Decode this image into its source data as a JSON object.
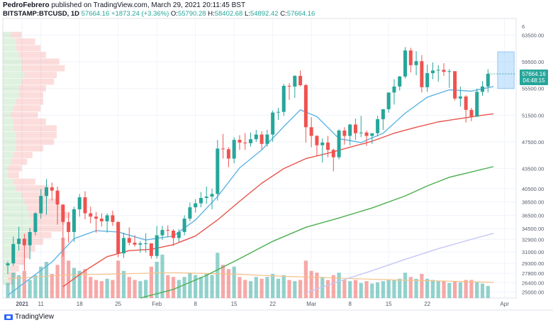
{
  "header": {
    "author": "PedroFebrero",
    "published_text": "published on TradingView.com, March 29, 2021 20:11:45 BST",
    "symbol": "BITSTAMP:BTCUSD, 1D",
    "price": "57664.16",
    "change": "+1873.24 (+3.36%)",
    "o_label": "O:",
    "o_value": "55790.28",
    "h_label": "H:",
    "h_value": "58402.68",
    "l_label": "L:",
    "l_value": "54892.42",
    "c_label": "C:",
    "c_value": "57664.16"
  },
  "price_badge": {
    "price": "57664.16",
    "countdown": "04:48:15"
  },
  "footer": {
    "logo_text": "TradingView"
  },
  "chart_data": {
    "type": "candlestick",
    "y_ticks": [
      "63500.00",
      "59500.00",
      "55500.00",
      "51500.00",
      "47500.00",
      "43500.00",
      "40500.00",
      "38500.00",
      "36500.00",
      "34500.00",
      "32900.00",
      "31000.00",
      "29300.00",
      "27800.00",
      "26400.00",
      "25000.00"
    ],
    "y_tick_top": "6",
    "x_ticks": [
      "2021",
      "11",
      "18",
      "25",
      "Feb",
      "8",
      "15",
      "22",
      "Mar",
      "8",
      "15",
      "22",
      "Apr"
    ],
    "y_range": [
      24100,
      66000
    ],
    "colors": {
      "up": "#26a69a",
      "down": "#ef5350",
      "ma_fast": "#5fb4e3",
      "ma_mid": "#e8534a",
      "ma_slow": "#4caf50",
      "ma_long": "#c5c6f5",
      "vol_ma": "#f5c28a"
    },
    "candles": [
      [
        29000,
        29600,
        27700,
        29300
      ],
      [
        29300,
        33300,
        28900,
        32200
      ],
      [
        32200,
        34800,
        31200,
        33000
      ],
      [
        33000,
        33700,
        28200,
        32000
      ],
      [
        32000,
        34600,
        29900,
        34000
      ],
      [
        34000,
        37000,
        33500,
        36800
      ],
      [
        36800,
        40400,
        36000,
        39400
      ],
      [
        39400,
        41900,
        36600,
        40700
      ],
      [
        40700,
        41400,
        38700,
        40200
      ],
      [
        40200,
        40800,
        35100,
        38100
      ],
      [
        38100,
        38200,
        30300,
        35500
      ],
      [
        35500,
        36900,
        32400,
        34000
      ],
      [
        34000,
        37800,
        32500,
        37400
      ],
      [
        37400,
        39700,
        36300,
        39200
      ],
      [
        39200,
        40100,
        35900,
        36800
      ],
      [
        36800,
        37800,
        35300,
        36300
      ],
      [
        36300,
        37000,
        33900,
        36000
      ],
      [
        36000,
        36800,
        34800,
        35600
      ],
      [
        35600,
        36800,
        33900,
        36500
      ],
      [
        36500,
        37200,
        34900,
        35500
      ],
      [
        35500,
        35600,
        30200,
        30800
      ],
      [
        30800,
        33900,
        30100,
        33100
      ],
      [
        33100,
        34700,
        32000,
        32400
      ],
      [
        32400,
        33500,
        31800,
        32100
      ],
      [
        32100,
        32600,
        30900,
        32300
      ],
      [
        32300,
        33800,
        30900,
        32300
      ],
      [
        32300,
        32300,
        30000,
        30400
      ],
      [
        30400,
        34900,
        30000,
        33500
      ],
      [
        33500,
        34900,
        32800,
        34300
      ],
      [
        34300,
        35000,
        33200,
        34200
      ],
      [
        34200,
        34400,
        31900,
        33100
      ],
      [
        33100,
        34400,
        32500,
        34000
      ],
      [
        34000,
        36500,
        33500,
        36000
      ],
      [
        36000,
        38400,
        35600,
        37700
      ],
      [
        37700,
        38900,
        36900,
        38300
      ],
      [
        38300,
        40000,
        37700,
        39100
      ],
      [
        39100,
        40800,
        38200,
        39300
      ],
      [
        39300,
        40500,
        37400,
        39700
      ],
      [
        39700,
        47800,
        38700,
        46500
      ],
      [
        46500,
        48700,
        45000,
        46400
      ],
      [
        46400,
        46700,
        43700,
        45000
      ],
      [
        45000,
        48200,
        44300,
        47800
      ],
      [
        47800,
        48500,
        46300,
        47400
      ],
      [
        47400,
        48800,
        46300,
        47300
      ],
      [
        47300,
        48900,
        46800,
        47900
      ],
      [
        47900,
        49300,
        47500,
        48600
      ],
      [
        48600,
        49100,
        46400,
        47200
      ],
      [
        47200,
        49300,
        46800,
        48600
      ],
      [
        48600,
        52200,
        47500,
        51900
      ],
      [
        51900,
        52600,
        50800,
        52000
      ],
      [
        52000,
        56200,
        51400,
        55900
      ],
      [
        55900,
        56300,
        53800,
        55800
      ],
      [
        55800,
        57500,
        54100,
        57400
      ],
      [
        57400,
        58200,
        55800,
        56000
      ],
      [
        56000,
        56200,
        47400,
        49700
      ],
      [
        49700,
        51200,
        46700,
        48400
      ],
      [
        48400,
        48500,
        45400,
        47000
      ],
      [
        47000,
        48000,
        44400,
        47400
      ],
      [
        47400,
        48400,
        45200,
        46300
      ],
      [
        46300,
        46500,
        43100,
        45200
      ],
      [
        45200,
        49400,
        44900,
        49200
      ],
      [
        49200,
        49700,
        47100,
        48400
      ],
      [
        48400,
        50200,
        47000,
        50100
      ],
      [
        50100,
        51000,
        47800,
        48800
      ],
      [
        48800,
        51400,
        48200,
        48900
      ],
      [
        48900,
        49200,
        46900,
        48400
      ],
      [
        48400,
        48700,
        47200,
        48800
      ],
      [
        48800,
        51400,
        48300,
        50900
      ],
      [
        50900,
        52400,
        49300,
        52400
      ],
      [
        52400,
        54900,
        51900,
        54900
      ],
      [
        54900,
        56900,
        53100,
        55800
      ],
      [
        55800,
        57400,
        55200,
        57300
      ],
      [
        57300,
        61700,
        57000,
        61200
      ],
      [
        61200,
        61600,
        57900,
        59000
      ],
      [
        59000,
        61100,
        57500,
        59600
      ],
      [
        59600,
        60500,
        54900,
        55700
      ],
      [
        55700,
        59100,
        55000,
        57800
      ],
      [
        57800,
        59400,
        56900,
        58200
      ],
      [
        58200,
        59000,
        56500,
        58300
      ],
      [
        58300,
        59300,
        57400,
        58000
      ],
      [
        58000,
        58400,
        55600,
        58100
      ],
      [
        58100,
        58100,
        53700,
        54000
      ],
      [
        54000,
        55800,
        52800,
        54300
      ],
      [
        54300,
        54500,
        50400,
        52300
      ],
      [
        52300,
        52600,
        50600,
        51300
      ],
      [
        51300,
        55500,
        51200,
        55000
      ],
      [
        55000,
        56600,
        54400,
        55800
      ],
      [
        55800,
        58400,
        54900,
        57700
      ]
    ],
    "volumes": [
      0.25,
      0.42,
      0.38,
      0.45,
      0.3,
      0.38,
      0.52,
      0.6,
      0.4,
      0.55,
      1.0,
      0.62,
      0.5,
      0.45,
      0.48,
      0.35,
      0.3,
      0.28,
      0.32,
      0.3,
      0.62,
      0.45,
      0.35,
      0.3,
      0.28,
      0.3,
      0.52,
      0.6,
      0.72,
      0.38,
      0.35,
      0.3,
      0.35,
      0.42,
      0.38,
      0.35,
      0.4,
      0.38,
      0.75,
      0.55,
      0.48,
      0.52,
      0.35,
      0.3,
      0.28,
      0.35,
      0.32,
      0.35,
      0.4,
      0.32,
      0.38,
      0.3,
      0.28,
      0.3,
      0.62,
      0.45,
      0.42,
      0.35,
      0.3,
      0.38,
      0.42,
      0.3,
      0.28,
      0.3,
      0.25,
      0.28,
      0.24,
      0.26,
      0.28,
      0.3,
      0.3,
      0.32,
      0.42,
      0.35,
      0.32,
      0.4,
      0.32,
      0.3,
      0.28,
      0.28,
      0.25,
      0.28,
      0.26,
      0.3,
      0.3,
      0.26,
      0.24,
      0.2
    ],
    "ma_fast": [
      [
        0,
        24500
      ],
      [
        8,
        29500
      ],
      [
        12,
        33000
      ],
      [
        16,
        34200
      ],
      [
        20,
        34000
      ],
      [
        25,
        32800
      ],
      [
        30,
        33400
      ],
      [
        34,
        35800
      ],
      [
        38,
        39300
      ],
      [
        42,
        43600
      ],
      [
        46,
        46300
      ],
      [
        50,
        49800
      ],
      [
        53,
        52300
      ],
      [
        56,
        51300
      ],
      [
        60,
        48000
      ],
      [
        64,
        47400
      ],
      [
        68,
        48800
      ],
      [
        72,
        51800
      ],
      [
        76,
        54200
      ],
      [
        80,
        55300
      ],
      [
        84,
        55100
      ],
      [
        88,
        55800
      ]
    ],
    "ma_mid": [
      [
        10,
        25800
      ],
      [
        14,
        28200
      ],
      [
        18,
        30300
      ],
      [
        22,
        31200
      ],
      [
        26,
        31400
      ],
      [
        30,
        32100
      ],
      [
        34,
        33400
      ],
      [
        38,
        35800
      ],
      [
        42,
        38600
      ],
      [
        46,
        41300
      ],
      [
        50,
        43500
      ],
      [
        54,
        45000
      ],
      [
        58,
        45800
      ],
      [
        62,
        46700
      ],
      [
        66,
        47600
      ],
      [
        70,
        48800
      ],
      [
        74,
        49700
      ],
      [
        78,
        50500
      ],
      [
        82,
        51000
      ],
      [
        86,
        51500
      ],
      [
        88,
        51700
      ]
    ],
    "ma_slow": [
      [
        24,
        24100
      ],
      [
        30,
        25400
      ],
      [
        36,
        27500
      ],
      [
        42,
        30000
      ],
      [
        48,
        32600
      ],
      [
        54,
        34700
      ],
      [
        60,
        36100
      ],
      [
        66,
        37600
      ],
      [
        72,
        39400
      ],
      [
        76,
        40900
      ],
      [
        80,
        42200
      ],
      [
        84,
        43000
      ],
      [
        88,
        43800
      ]
    ],
    "ma_long": [
      [
        54,
        24900
      ],
      [
        60,
        26600
      ],
      [
        66,
        28200
      ],
      [
        72,
        29900
      ],
      [
        78,
        31500
      ],
      [
        84,
        32900
      ],
      [
        88,
        33800
      ]
    ],
    "vol_ma": [
      [
        0,
        0.32
      ],
      [
        10,
        0.38
      ],
      [
        20,
        0.4
      ],
      [
        30,
        0.42
      ],
      [
        40,
        0.4
      ],
      [
        50,
        0.36
      ],
      [
        60,
        0.33
      ],
      [
        70,
        0.3
      ],
      [
        80,
        0.28
      ],
      [
        88,
        0.26
      ]
    ],
    "volume_profile": [
      [
        63500,
        0.03,
        0.04
      ],
      [
        62500,
        0.05,
        0.07
      ],
      [
        61500,
        0.05,
        0.09
      ],
      [
        60500,
        0.06,
        0.1
      ],
      [
        59500,
        0.07,
        0.14
      ],
      [
        58500,
        0.07,
        0.16
      ],
      [
        57500,
        0.08,
        0.12
      ],
      [
        56500,
        0.07,
        0.12
      ],
      [
        55500,
        0.06,
        0.1
      ],
      [
        54500,
        0.06,
        0.09
      ],
      [
        53500,
        0.05,
        0.1
      ],
      [
        52500,
        0.04,
        0.1
      ],
      [
        51500,
        0.03,
        0.1
      ],
      [
        50500,
        0.04,
        0.12
      ],
      [
        49500,
        0.04,
        0.16
      ],
      [
        48500,
        0.05,
        0.15
      ],
      [
        47500,
        0.05,
        0.14
      ],
      [
        46500,
        0.05,
        0.1
      ],
      [
        45500,
        0.04,
        0.07
      ],
      [
        44500,
        0.03,
        0.06
      ],
      [
        43500,
        0.02,
        0.05
      ],
      [
        42500,
        0.02,
        0.04
      ],
      [
        41500,
        0.04,
        0.08
      ],
      [
        40500,
        0.05,
        0.12
      ],
      [
        39500,
        0.07,
        0.1
      ],
      [
        38500,
        0.08,
        0.12
      ],
      [
        37500,
        0.09,
        0.14
      ],
      [
        36500,
        0.1,
        0.15
      ],
      [
        35500,
        0.11,
        0.12
      ],
      [
        34500,
        0.1,
        0.12
      ],
      [
        33500,
        0.08,
        0.1
      ],
      [
        32500,
        0.07,
        0.08
      ],
      [
        31500,
        0.06,
        0.06
      ],
      [
        30500,
        0.05,
        0.05
      ],
      [
        29500,
        0.04,
        0.04
      ],
      [
        28500,
        0.03,
        0.03
      ],
      [
        27500,
        0.02,
        0.03
      ],
      [
        26500,
        0.02,
        0.02
      ]
    ],
    "forecast_box": {
      "start": 89,
      "end": 92,
      "low": 55500,
      "high": 61000
    }
  }
}
